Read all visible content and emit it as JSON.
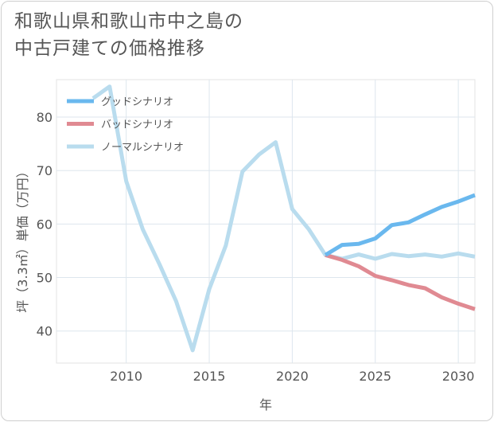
{
  "title_lines": [
    "和歌山県和歌山市中之島の",
    "中古戸建ての価格推移"
  ],
  "chart_data": {
    "type": "line",
    "xlabel": "年",
    "ylabel": "坪（3.3㎡）単価（万円）",
    "xlim": [
      2005.8,
      2031
    ],
    "ylim": [
      34,
      87
    ],
    "xticks": [
      2010,
      2015,
      2020,
      2025,
      2030
    ],
    "yticks": [
      40,
      50,
      60,
      70,
      80
    ],
    "grid": true,
    "legend_position": "top-left",
    "series": [
      {
        "name": "グッドシナリオ",
        "color": "#6ab8ee",
        "x": [
          2022,
          2023,
          2024,
          2025,
          2026,
          2027,
          2028,
          2029,
          2030,
          2031
        ],
        "y": [
          54.2,
          56.1,
          56.3,
          57.3,
          59.8,
          60.3,
          61.8,
          63.2,
          64.2,
          65.4
        ]
      },
      {
        "name": "バッドシナリオ",
        "color": "#e08a92",
        "x": [
          2022,
          2023,
          2024,
          2025,
          2026,
          2027,
          2028,
          2029,
          2030,
          2031
        ],
        "y": [
          54.2,
          53.3,
          52.1,
          50.3,
          49.5,
          48.6,
          48.0,
          46.3,
          45.1,
          44.1
        ]
      },
      {
        "name": "ノーマルシナリオ",
        "color": "#b9dcee",
        "x": [
          2008,
          2009,
          2010,
          2011,
          2012,
          2013,
          2014,
          2015,
          2016,
          2017,
          2018,
          2019,
          2020,
          2021,
          2022,
          2023,
          2024,
          2025,
          2026,
          2027,
          2028,
          2029,
          2030,
          2031
        ],
        "y": [
          83.5,
          85.7,
          68.0,
          59.0,
          52.5,
          45.6,
          36.4,
          47.8,
          56.0,
          69.8,
          73.0,
          75.3,
          62.8,
          59.0,
          54.2,
          53.5,
          54.3,
          53.5,
          54.4,
          54.0,
          54.3,
          53.9,
          54.5,
          53.9
        ]
      }
    ]
  }
}
